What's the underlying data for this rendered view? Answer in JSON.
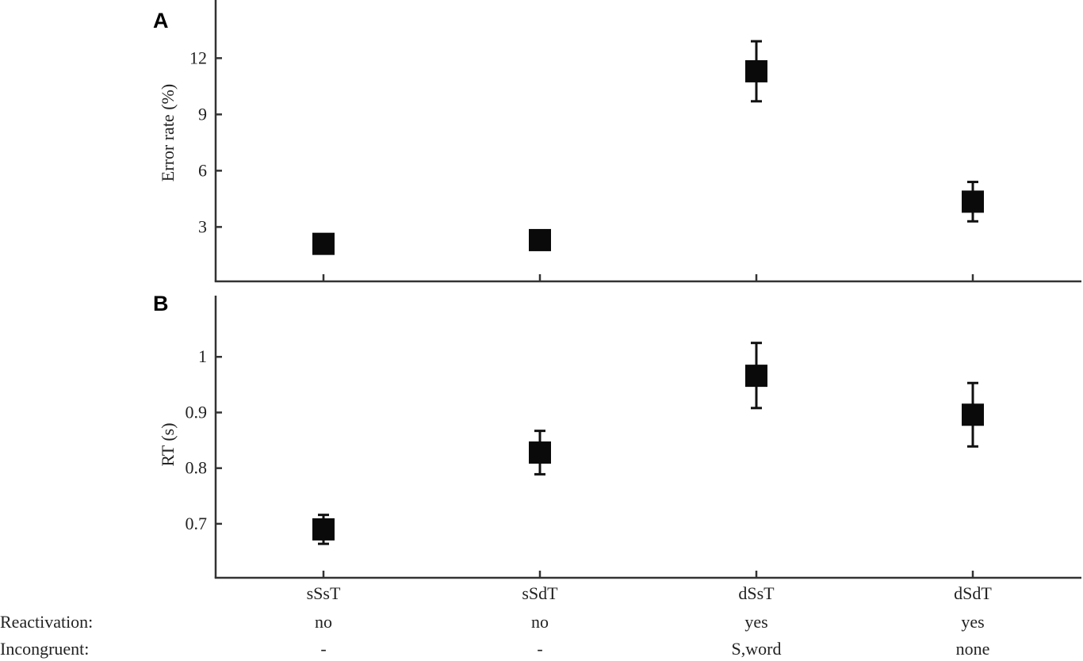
{
  "chart_data": [
    {
      "panel": "A",
      "type": "scatter",
      "ylabel": "Error rate (%)",
      "categories": [
        "sSsT",
        "sSdT",
        "dSsT",
        "dSdT"
      ],
      "values": [
        2.1,
        2.3,
        11.3,
        4.35
      ],
      "error_low": [
        1.6,
        2.2,
        9.7,
        3.3
      ],
      "error_high": [
        2.6,
        2.4,
        12.9,
        5.4
      ],
      "yticks": [
        3,
        6,
        9,
        12
      ],
      "ylim": [
        0.1,
        15.1
      ]
    },
    {
      "panel": "B",
      "type": "scatter",
      "ylabel": "RT (s)",
      "categories": [
        "sSsT",
        "sSdT",
        "dSsT",
        "dSdT"
      ],
      "values": [
        0.69,
        0.828,
        0.966,
        0.896
      ],
      "error_low": [
        0.664,
        0.789,
        0.908,
        0.839
      ],
      "error_high": [
        0.716,
        0.867,
        1.025,
        0.953
      ],
      "yticks": [
        "0.7",
        "0.8",
        "0.9",
        "1"
      ],
      "ylim": [
        0.603,
        1.11
      ]
    }
  ],
  "xlabels": [
    "sSsT",
    "sSdT",
    "dSsT",
    "dSdT"
  ],
  "rows": [
    {
      "label": "Reactivation:",
      "values": [
        "no",
        "no",
        "yes",
        "yes"
      ]
    },
    {
      "label": "Incongruent:",
      "values": [
        "-",
        "-",
        "S,word",
        "none"
      ]
    }
  ]
}
